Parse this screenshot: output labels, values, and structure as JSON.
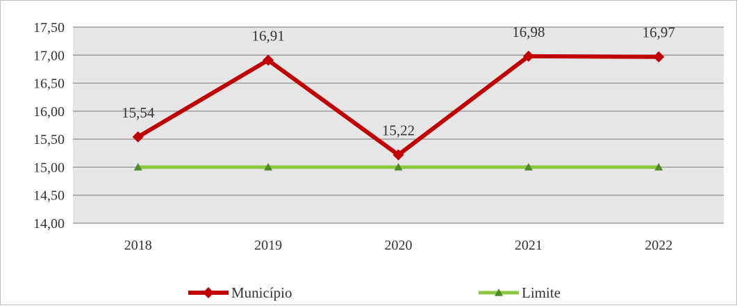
{
  "chart_data": {
    "type": "line",
    "categories": [
      "2018",
      "2019",
      "2020",
      "2021",
      "2022"
    ],
    "series": [
      {
        "name": "Município",
        "values": [
          15.54,
          16.91,
          15.22,
          16.98,
          16.97
        ],
        "labels": [
          "15,54",
          "16,91",
          "15,22",
          "16,98",
          "16,97"
        ],
        "color": "#c00000",
        "marker": "diamond"
      },
      {
        "name": "Limite",
        "values": [
          15.0,
          15.0,
          15.0,
          15.0,
          15.0
        ],
        "color": "#8dc63f",
        "marker": "triangle"
      }
    ],
    "ylim": [
      14.0,
      17.5
    ],
    "yticks": [
      14.0,
      14.5,
      15.0,
      15.5,
      16.0,
      16.5,
      17.0,
      17.5
    ],
    "ytick_labels": [
      "14,00",
      "14,50",
      "15,00",
      "15,50",
      "16,00",
      "16,50",
      "17,00",
      "17,50"
    ],
    "grid": true,
    "plot_background": "#e6e6e6",
    "legend_position": "bottom"
  }
}
